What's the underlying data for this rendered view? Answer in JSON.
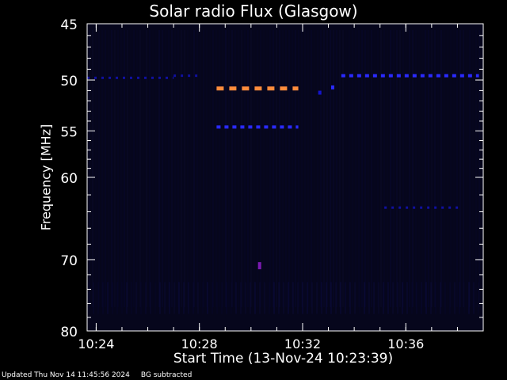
{
  "chart_data": {
    "type": "heatmap",
    "title": "Solar radio Flux (Glasgow)",
    "xlabel": "Start Time (13-Nov-24 10:23:39)",
    "ylabel": "Frequency [MHz]",
    "x_ticks": [
      "10:24",
      "10:28",
      "10:32",
      "10:36"
    ],
    "y_ticks": [
      "45",
      "50",
      "55",
      "60",
      "70",
      "80"
    ],
    "ylim": [
      45,
      80
    ],
    "y_scale": "log",
    "colors": {
      "background": "#000000",
      "plot_bg": "#06061c",
      "weak": "#1414cc",
      "medium": "#2a2aff",
      "strong": "#ff8c3c",
      "mid": "#7a1ab0"
    },
    "features": [
      {
        "name": "orange band",
        "freq_mhz": 50.8,
        "start": "10:28:40",
        "end": "10:31:50",
        "level": "strong"
      },
      {
        "name": "blue band",
        "freq_mhz": 54.6,
        "start": "10:28:40",
        "end": "10:31:50",
        "level": "medium"
      },
      {
        "name": "blue band",
        "freq_mhz": 49.6,
        "start": "10:33:30",
        "end": "10:38:50",
        "level": "medium"
      },
      {
        "name": "blue band",
        "freq_mhz": 49.6,
        "start": "10:27:00",
        "end": "10:28:00",
        "level": "weak"
      },
      {
        "name": "faint band",
        "freq_mhz": 49.8,
        "start": "10:23:39",
        "end": "10:27:00",
        "level": "weak"
      },
      {
        "name": "faint band",
        "freq_mhz": 63.5,
        "start": "10:35:10",
        "end": "10:38:10",
        "level": "weak"
      },
      {
        "name": "spot",
        "freq_mhz": 51.2,
        "start": "10:32:40",
        "end": "10:32:45",
        "level": "weak"
      },
      {
        "name": "spot",
        "freq_mhz": 50.7,
        "start": "10:33:10",
        "end": "10:33:15",
        "level": "medium"
      },
      {
        "name": "spot",
        "freq_mhz": 70.8,
        "start": "10:30:20",
        "end": "10:30:25",
        "level": "mid"
      }
    ]
  },
  "footer": {
    "updated": "Updated Thu Nov 14 11:45:56 2024",
    "note": "BG subtracted"
  }
}
